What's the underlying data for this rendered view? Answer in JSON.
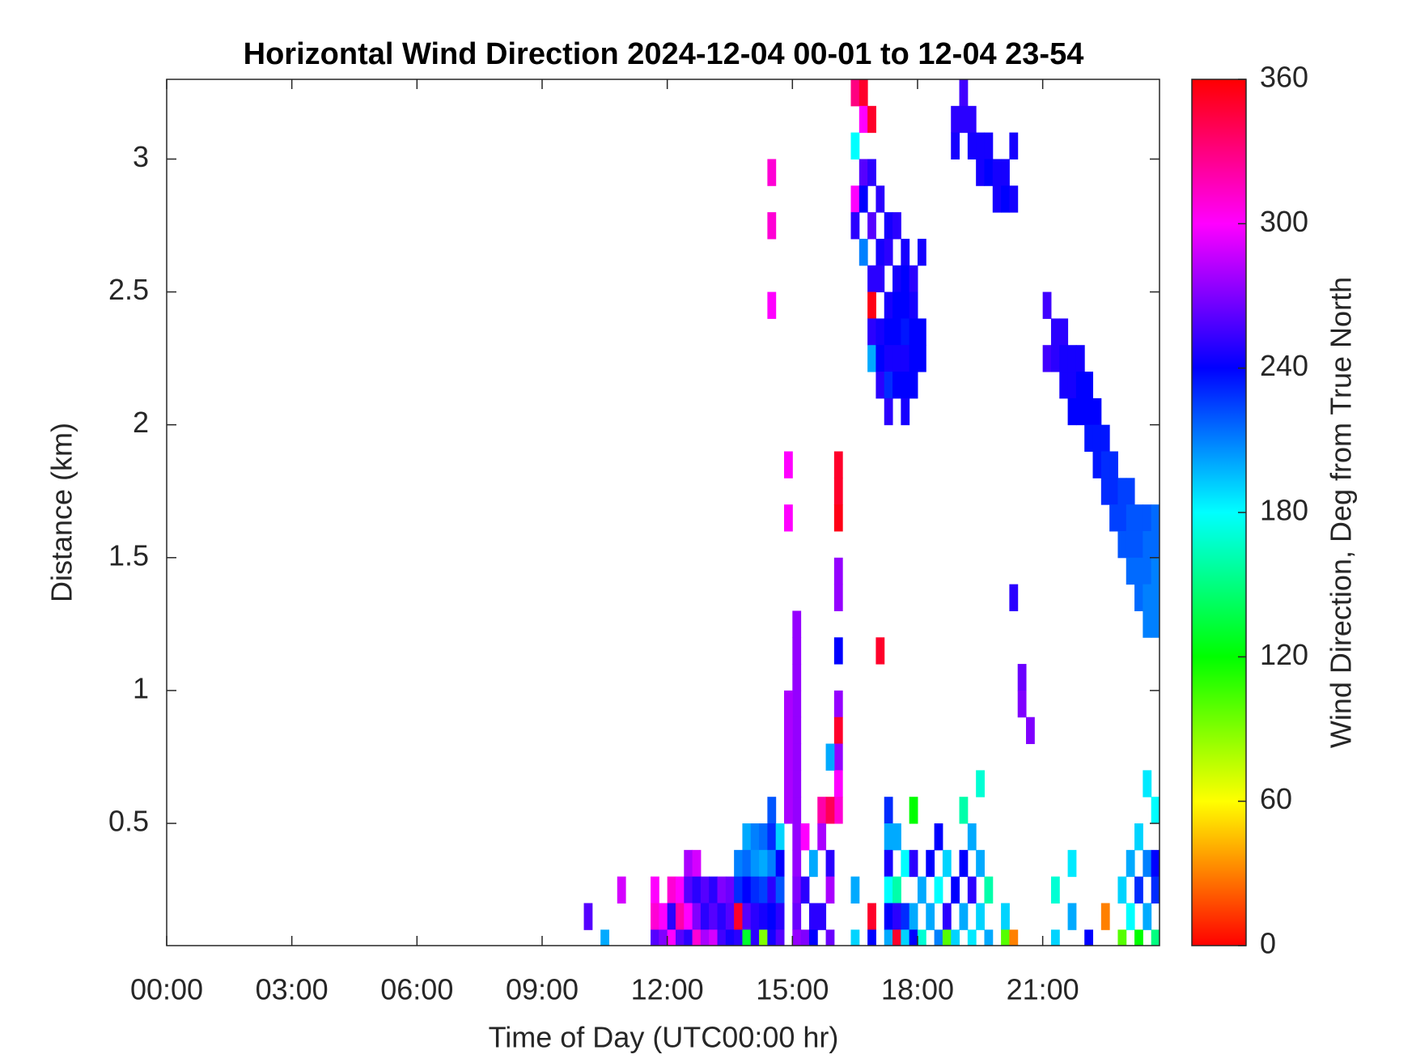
{
  "chart_data": {
    "type": "heatmap",
    "title": "Horizontal Wind Direction 2024-12-04 00-01 to 12-04 23-54",
    "x_label": "Time of Day (UTC00:00 hr)",
    "y_label": "Distance (km)",
    "colorbar_label": "Wind Direction, Deg from True North",
    "colormap": "hsv",
    "xlim": [
      0,
      23.8
    ],
    "ylim": [
      0.04,
      3.3
    ],
    "xticks": [
      {
        "value": 0,
        "label": "00:00"
      },
      {
        "value": 3,
        "label": "03:00"
      },
      {
        "value": 6,
        "label": "06:00"
      },
      {
        "value": 9,
        "label": "09:00"
      },
      {
        "value": 12,
        "label": "12:00"
      },
      {
        "value": 15,
        "label": "15:00"
      },
      {
        "value": 18,
        "label": "18:00"
      },
      {
        "value": 21,
        "label": "21:00"
      }
    ],
    "yticks": [
      0.5,
      1,
      1.5,
      2,
      2.5,
      3
    ],
    "clim": [
      0,
      360
    ],
    "cticks": [
      0,
      60,
      120,
      180,
      240,
      300,
      360
    ],
    "cells": [
      [
        16.5,
        3.25,
        330
      ],
      [
        16.5,
        3.05,
        180
      ],
      [
        16.5,
        2.85,
        300
      ],
      [
        16.5,
        2.75,
        250
      ],
      [
        16.7,
        3.25,
        350
      ],
      [
        16.7,
        3.15,
        300
      ],
      [
        16.7,
        2.95,
        260
      ],
      [
        16.7,
        2.85,
        240
      ],
      [
        16.7,
        2.65,
        210
      ],
      [
        16.9,
        3.15,
        350
      ],
      [
        16.9,
        2.95,
        250
      ],
      [
        16.9,
        2.75,
        260
      ],
      [
        16.9,
        2.55,
        250
      ],
      [
        16.9,
        2.45,
        355
      ],
      [
        16.9,
        2.35,
        250
      ],
      [
        16.9,
        2.25,
        200
      ],
      [
        17.1,
        2.85,
        250
      ],
      [
        17.1,
        2.65,
        245
      ],
      [
        17.1,
        2.55,
        250
      ],
      [
        17.1,
        2.35,
        245
      ],
      [
        17.1,
        2.25,
        240
      ],
      [
        17.1,
        2.15,
        250
      ],
      [
        17.3,
        2.75,
        245
      ],
      [
        17.3,
        2.65,
        250
      ],
      [
        17.3,
        2.45,
        245
      ],
      [
        17.3,
        2.35,
        240
      ],
      [
        17.3,
        2.25,
        245
      ],
      [
        17.3,
        2.15,
        230
      ],
      [
        17.3,
        2.05,
        250
      ],
      [
        17.5,
        2.75,
        250
      ],
      [
        17.5,
        2.55,
        245
      ],
      [
        17.5,
        2.45,
        240
      ],
      [
        17.5,
        2.35,
        240
      ],
      [
        17.5,
        2.25,
        245
      ],
      [
        17.5,
        2.15,
        240
      ],
      [
        17.7,
        2.65,
        245
      ],
      [
        17.7,
        2.55,
        240
      ],
      [
        17.7,
        2.45,
        240
      ],
      [
        17.7,
        2.35,
        235
      ],
      [
        17.7,
        2.25,
        245
      ],
      [
        17.7,
        2.15,
        240
      ],
      [
        17.7,
        2.05,
        245
      ],
      [
        17.9,
        2.55,
        250
      ],
      [
        17.9,
        2.45,
        245
      ],
      [
        17.9,
        2.35,
        240
      ],
      [
        17.9,
        2.25,
        240
      ],
      [
        17.9,
        2.15,
        240
      ],
      [
        18.1,
        2.65,
        245
      ],
      [
        18.1,
        2.35,
        240
      ],
      [
        18.1,
        2.25,
        240
      ],
      [
        18.9,
        3.15,
        250
      ],
      [
        18.9,
        3.05,
        245
      ],
      [
        19.1,
        3.25,
        255
      ],
      [
        19.1,
        3.15,
        250
      ],
      [
        19.3,
        3.15,
        250
      ],
      [
        19.3,
        3.05,
        245
      ],
      [
        19.5,
        3.05,
        245
      ],
      [
        19.5,
        2.95,
        245
      ],
      [
        19.7,
        3.05,
        245
      ],
      [
        19.7,
        2.95,
        240
      ],
      [
        19.9,
        2.95,
        245
      ],
      [
        19.9,
        2.85,
        245
      ],
      [
        20.1,
        2.95,
        245
      ],
      [
        20.1,
        2.85,
        240
      ],
      [
        20.3,
        3.05,
        245
      ],
      [
        20.3,
        2.85,
        245
      ],
      [
        21.1,
        2.45,
        255
      ],
      [
        21.1,
        2.25,
        255
      ],
      [
        21.3,
        2.35,
        250
      ],
      [
        21.3,
        2.25,
        250
      ],
      [
        21.5,
        2.35,
        250
      ],
      [
        21.5,
        2.25,
        245
      ],
      [
        21.5,
        2.15,
        245
      ],
      [
        21.7,
        2.25,
        245
      ],
      [
        21.7,
        2.15,
        245
      ],
      [
        21.7,
        2.05,
        240
      ],
      [
        21.9,
        2.25,
        245
      ],
      [
        21.9,
        2.15,
        240
      ],
      [
        21.9,
        2.05,
        240
      ],
      [
        22.1,
        2.15,
        240
      ],
      [
        22.1,
        2.05,
        240
      ],
      [
        22.1,
        1.95,
        235
      ],
      [
        22.3,
        2.05,
        240
      ],
      [
        22.3,
        1.95,
        235
      ],
      [
        22.3,
        1.85,
        235
      ],
      [
        22.5,
        1.95,
        235
      ],
      [
        22.5,
        1.85,
        230
      ],
      [
        22.5,
        1.75,
        230
      ],
      [
        22.7,
        1.85,
        230
      ],
      [
        22.7,
        1.75,
        230
      ],
      [
        22.7,
        1.65,
        225
      ],
      [
        22.9,
        1.75,
        225
      ],
      [
        22.9,
        1.65,
        225
      ],
      [
        22.9,
        1.55,
        220
      ],
      [
        23.1,
        1.75,
        225
      ],
      [
        23.1,
        1.65,
        220
      ],
      [
        23.1,
        1.55,
        220
      ],
      [
        23.1,
        1.45,
        215
      ],
      [
        23.3,
        1.65,
        220
      ],
      [
        23.3,
        1.55,
        220
      ],
      [
        23.3,
        1.45,
        215
      ],
      [
        23.3,
        1.35,
        215
      ],
      [
        23.5,
        1.65,
        220
      ],
      [
        23.5,
        1.55,
        215
      ],
      [
        23.5,
        1.45,
        215
      ],
      [
        23.5,
        1.35,
        210
      ],
      [
        23.5,
        1.25,
        210
      ],
      [
        23.7,
        1.65,
        215
      ],
      [
        23.7,
        1.55,
        215
      ],
      [
        23.7,
        1.45,
        210
      ],
      [
        23.7,
        1.35,
        210
      ],
      [
        23.7,
        1.25,
        210
      ],
      [
        15.1,
        1.25,
        275
      ],
      [
        15.1,
        1.15,
        275
      ],
      [
        15.1,
        1.05,
        275
      ],
      [
        15.1,
        0.95,
        275
      ],
      [
        15.1,
        0.85,
        275
      ],
      [
        15.1,
        0.75,
        275
      ],
      [
        15.1,
        0.65,
        275
      ],
      [
        15.1,
        0.55,
        275
      ],
      [
        15.1,
        0.45,
        275
      ],
      [
        15.1,
        0.35,
        275
      ],
      [
        14.9,
        0.95,
        280
      ],
      [
        14.9,
        0.85,
        280
      ],
      [
        14.9,
        0.75,
        280
      ],
      [
        14.9,
        0.65,
        280
      ],
      [
        14.9,
        0.55,
        280
      ],
      [
        16.1,
        1.85,
        350
      ],
      [
        16.1,
        1.75,
        350
      ],
      [
        16.1,
        1.65,
        355
      ],
      [
        16.1,
        1.45,
        275
      ],
      [
        16.1,
        1.35,
        275
      ],
      [
        16.1,
        1.15,
        240
      ],
      [
        16.1,
        0.95,
        275
      ],
      [
        16.1,
        0.85,
        350
      ],
      [
        16.1,
        0.75,
        275
      ],
      [
        16.1,
        0.65,
        300
      ],
      [
        16.1,
        0.55,
        310
      ],
      [
        14.5,
        2.95,
        310
      ],
      [
        14.5,
        2.75,
        310
      ],
      [
        14.5,
        2.45,
        300
      ],
      [
        14.9,
        1.85,
        300
      ],
      [
        14.9,
        1.65,
        300
      ],
      [
        10.1,
        0.15,
        260
      ],
      [
        10.5,
        0.05,
        200
      ],
      [
        10.9,
        0.25,
        290
      ],
      [
        11.7,
        0.25,
        300
      ],
      [
        11.7,
        0.15,
        310
      ],
      [
        11.7,
        0.05,
        260
      ],
      [
        11.9,
        0.15,
        300
      ],
      [
        11.9,
        0.05,
        270
      ],
      [
        12.1,
        0.25,
        310
      ],
      [
        12.1,
        0.15,
        250
      ],
      [
        12.1,
        0.05,
        300
      ],
      [
        12.3,
        0.25,
        300
      ],
      [
        12.3,
        0.15,
        320
      ],
      [
        12.3,
        0.05,
        260
      ],
      [
        12.5,
        0.35,
        280
      ],
      [
        12.5,
        0.25,
        260
      ],
      [
        12.5,
        0.15,
        300
      ],
      [
        12.5,
        0.05,
        250
      ],
      [
        12.7,
        0.35,
        290
      ],
      [
        12.7,
        0.25,
        250
      ],
      [
        12.7,
        0.15,
        270
      ],
      [
        12.7,
        0.05,
        310
      ],
      [
        12.9,
        0.25,
        260
      ],
      [
        12.9,
        0.15,
        250
      ],
      [
        12.9,
        0.05,
        280
      ],
      [
        13.1,
        0.25,
        250
      ],
      [
        13.1,
        0.15,
        260
      ],
      [
        13.1,
        0.05,
        290
      ],
      [
        13.3,
        0.25,
        270
      ],
      [
        13.3,
        0.15,
        250
      ],
      [
        13.3,
        0.05,
        255
      ],
      [
        13.5,
        0.25,
        265
      ],
      [
        13.5,
        0.15,
        260
      ],
      [
        13.5,
        0.05,
        245
      ],
      [
        13.7,
        0.35,
        210
      ],
      [
        13.7,
        0.25,
        230
      ],
      [
        13.7,
        0.15,
        350
      ],
      [
        13.7,
        0.05,
        250
      ],
      [
        13.9,
        0.45,
        200
      ],
      [
        13.9,
        0.35,
        215
      ],
      [
        13.9,
        0.25,
        240
      ],
      [
        13.9,
        0.15,
        260
      ],
      [
        13.9,
        0.05,
        130
      ],
      [
        14.1,
        0.45,
        210
      ],
      [
        14.1,
        0.35,
        205
      ],
      [
        14.1,
        0.25,
        230
      ],
      [
        14.1,
        0.15,
        250
      ],
      [
        14.1,
        0.05,
        250
      ],
      [
        14.3,
        0.45,
        215
      ],
      [
        14.3,
        0.35,
        200
      ],
      [
        14.3,
        0.25,
        225
      ],
      [
        14.3,
        0.15,
        245
      ],
      [
        14.3,
        0.05,
        90
      ],
      [
        14.5,
        0.55,
        220
      ],
      [
        14.5,
        0.45,
        230
      ],
      [
        14.5,
        0.35,
        210
      ],
      [
        14.5,
        0.25,
        250
      ],
      [
        14.5,
        0.15,
        240
      ],
      [
        14.5,
        0.05,
        245
      ],
      [
        14.7,
        0.45,
        190
      ],
      [
        14.7,
        0.35,
        240
      ],
      [
        14.7,
        0.25,
        220
      ],
      [
        14.7,
        0.15,
        250
      ],
      [
        14.7,
        0.05,
        260
      ],
      [
        15.1,
        0.25,
        270
      ],
      [
        15.1,
        0.15,
        265
      ],
      [
        15.1,
        0.05,
        275
      ],
      [
        15.3,
        0.45,
        300
      ],
      [
        15.3,
        0.25,
        250
      ],
      [
        15.3,
        0.05,
        270
      ],
      [
        15.5,
        0.35,
        200
      ],
      [
        15.5,
        0.15,
        250
      ],
      [
        15.5,
        0.05,
        240
      ],
      [
        15.7,
        0.55,
        320
      ],
      [
        15.7,
        0.45,
        280
      ],
      [
        15.7,
        0.15,
        250
      ],
      [
        15.9,
        0.75,
        200
      ],
      [
        15.9,
        0.55,
        340
      ],
      [
        15.9,
        0.35,
        250
      ],
      [
        15.9,
        0.25,
        280
      ],
      [
        15.9,
        0.05,
        265
      ],
      [
        16.5,
        0.05,
        190
      ],
      [
        16.5,
        0.25,
        200
      ],
      [
        16.9,
        0.15,
        350
      ],
      [
        16.9,
        0.05,
        240
      ],
      [
        17.1,
        1.15,
        350
      ],
      [
        17.3,
        0.55,
        230
      ],
      [
        17.3,
        0.45,
        200
      ],
      [
        17.3,
        0.35,
        245
      ],
      [
        17.3,
        0.25,
        180
      ],
      [
        17.3,
        0.15,
        240
      ],
      [
        17.3,
        0.05,
        200
      ],
      [
        17.5,
        0.45,
        200
      ],
      [
        17.5,
        0.25,
        160
      ],
      [
        17.5,
        0.15,
        250
      ],
      [
        17.5,
        0.05,
        350
      ],
      [
        17.7,
        0.35,
        180
      ],
      [
        17.7,
        0.15,
        230
      ],
      [
        17.7,
        0.05,
        190
      ],
      [
        17.9,
        0.55,
        120
      ],
      [
        17.9,
        0.35,
        250
      ],
      [
        17.9,
        0.15,
        200
      ],
      [
        17.9,
        0.05,
        240
      ],
      [
        18.1,
        0.25,
        200
      ],
      [
        18.1,
        0.05,
        170
      ],
      [
        18.3,
        0.35,
        240
      ],
      [
        18.3,
        0.15,
        200
      ],
      [
        18.5,
        0.45,
        240
      ],
      [
        18.5,
        0.25,
        180
      ],
      [
        18.5,
        0.05,
        210
      ],
      [
        18.7,
        0.35,
        190
      ],
      [
        18.7,
        0.15,
        250
      ],
      [
        18.7,
        0.05,
        100
      ],
      [
        18.9,
        0.25,
        240
      ],
      [
        18.9,
        0.05,
        190
      ],
      [
        19.1,
        0.55,
        160
      ],
      [
        19.1,
        0.35,
        240
      ],
      [
        19.1,
        0.15,
        200
      ],
      [
        19.3,
        0.45,
        200
      ],
      [
        19.3,
        0.25,
        250
      ],
      [
        19.3,
        0.05,
        185
      ],
      [
        19.5,
        0.65,
        170
      ],
      [
        19.5,
        0.35,
        200
      ],
      [
        19.5,
        0.15,
        190
      ],
      [
        19.7,
        0.25,
        160
      ],
      [
        19.7,
        0.05,
        200
      ],
      [
        20.1,
        0.15,
        190
      ],
      [
        20.1,
        0.05,
        100
      ],
      [
        20.3,
        1.35,
        250
      ],
      [
        20.3,
        0.05,
        30
      ],
      [
        20.5,
        1.05,
        265
      ],
      [
        20.5,
        0.95,
        270
      ],
      [
        20.7,
        0.85,
        270
      ],
      [
        21.3,
        0.25,
        170
      ],
      [
        21.3,
        0.05,
        190
      ],
      [
        21.7,
        0.15,
        200
      ],
      [
        21.7,
        0.35,
        185
      ],
      [
        22.1,
        0.05,
        240
      ],
      [
        22.5,
        0.15,
        30
      ],
      [
        22.9,
        0.25,
        190
      ],
      [
        22.9,
        0.05,
        100
      ],
      [
        23.1,
        0.35,
        200
      ],
      [
        23.1,
        0.15,
        180
      ],
      [
        23.3,
        0.45,
        190
      ],
      [
        23.3,
        0.25,
        230
      ],
      [
        23.3,
        0.05,
        120
      ],
      [
        23.5,
        0.65,
        185
      ],
      [
        23.5,
        0.35,
        210
      ],
      [
        23.5,
        0.15,
        200
      ],
      [
        23.7,
        0.55,
        180
      ],
      [
        23.7,
        0.35,
        240
      ],
      [
        23.7,
        0.25,
        230
      ],
      [
        23.7,
        0.05,
        150
      ]
    ]
  }
}
